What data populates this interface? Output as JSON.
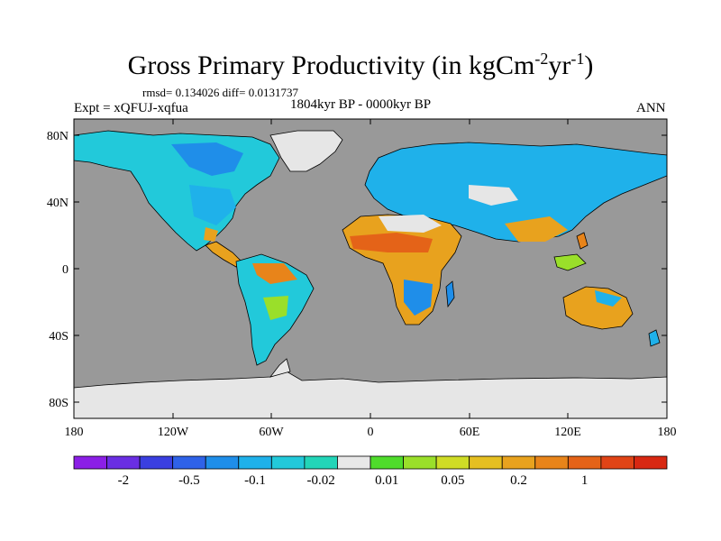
{
  "title": {
    "main": "Gross Primary Productivity (in kgCm",
    "exp1": "-2",
    "mid": "yr",
    "exp2": "-1",
    "end": ")"
  },
  "stats": "rmsd= 0.134026 diff= 0.0131737",
  "experiment": "Expt = xQFUJ-xqfua",
  "period": "1804kyr BP - 0000kyr BP",
  "season": "ANN",
  "map": {
    "y_ticks": [
      "80N",
      "40N",
      "0",
      "40S",
      "80S"
    ],
    "x_ticks": [
      "180",
      "120W",
      "60W",
      "0",
      "60E",
      "120E",
      "180"
    ]
  },
  "colorbar": {
    "labels": [
      "-2",
      "-0.5",
      "-0.1",
      "-0.02",
      "0.01",
      "0.05",
      "0.2",
      "1"
    ],
    "colors": [
      "#8b1fe6",
      "#6a2ee3",
      "#3a3fe0",
      "#2f62e8",
      "#1f8ee9",
      "#1fb1ea",
      "#22c9da",
      "#22d5b8",
      "#e8e8e8",
      "#4fdc2b",
      "#9adf2a",
      "#cfdc26",
      "#e5bf21",
      "#e8a21e",
      "#e8841a",
      "#e46318",
      "#e04416",
      "#d82812"
    ],
    "land_nodata": "#e6e6e6",
    "ocean": "#999999"
  }
}
